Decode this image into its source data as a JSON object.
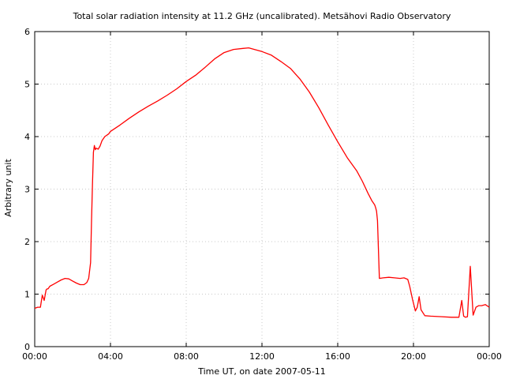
{
  "chart_data": {
    "type": "line",
    "title": "Total solar radiation intensity at 11.2 GHz (uncalibrated). Metsähovi Radio Observatory",
    "xlabel": "Time UT, on date 2007-05-11",
    "ylabel": "Arbitrary unit",
    "xlim": [
      0,
      24
    ],
    "ylim": [
      0,
      6
    ],
    "x_tick_values": [
      0,
      4,
      8,
      12,
      16,
      20,
      24
    ],
    "x_tick_labels": [
      "00:00",
      "04:00",
      "08:00",
      "12:00",
      "16:00",
      "20:00",
      "00:00"
    ],
    "y_tick_values": [
      0,
      1,
      2,
      3,
      4,
      5,
      6
    ],
    "y_tick_labels": [
      "0",
      "1",
      "2",
      "3",
      "4",
      "5",
      "6"
    ],
    "grid": true,
    "line_color": "#ff0000",
    "series": [
      {
        "x": [
          0.0,
          0.15,
          0.3,
          0.4,
          0.5,
          0.6,
          0.65,
          0.7,
          0.8,
          1.0,
          1.2,
          1.4,
          1.6,
          1.8,
          2.0,
          2.2,
          2.4,
          2.6,
          2.75,
          2.85,
          2.95,
          3.0,
          3.05,
          3.1,
          3.15,
          3.2,
          3.25,
          3.35,
          3.45,
          3.55,
          3.7,
          3.9,
          4.0,
          4.5,
          5.0,
          5.5,
          6.0,
          6.5,
          7.0,
          7.5,
          8.0,
          8.5,
          9.0,
          9.5,
          10.0,
          10.5,
          11.0,
          11.3,
          11.6,
          12.0,
          12.5,
          13.0,
          13.5,
          14.0,
          14.5,
          15.0,
          15.5,
          16.0,
          16.5,
          17.0,
          17.3,
          17.6,
          17.8,
          17.95,
          18.0,
          18.05,
          18.1,
          18.2,
          18.4,
          18.7,
          19.0,
          19.3,
          19.5,
          19.7,
          19.8,
          19.95,
          20.1,
          20.2,
          20.3,
          20.4,
          20.6,
          20.9,
          21.5,
          22.0,
          22.4,
          22.55,
          22.65,
          22.75,
          22.85,
          23.0,
          23.15,
          23.3,
          23.45,
          23.6,
          23.8,
          24.0
        ],
        "y": [
          0.73,
          0.75,
          0.75,
          0.98,
          0.88,
          1.08,
          1.1,
          1.1,
          1.15,
          1.19,
          1.23,
          1.27,
          1.3,
          1.29,
          1.25,
          1.21,
          1.18,
          1.18,
          1.22,
          1.3,
          1.6,
          2.4,
          3.1,
          3.7,
          3.83,
          3.75,
          3.78,
          3.76,
          3.82,
          3.92,
          4.0,
          4.05,
          4.1,
          4.22,
          4.35,
          4.47,
          4.58,
          4.68,
          4.79,
          4.91,
          5.05,
          5.17,
          5.32,
          5.48,
          5.6,
          5.66,
          5.68,
          5.69,
          5.66,
          5.62,
          5.55,
          5.43,
          5.3,
          5.1,
          4.85,
          4.55,
          4.22,
          3.9,
          3.6,
          3.35,
          3.15,
          2.92,
          2.78,
          2.7,
          2.65,
          2.58,
          2.4,
          1.3,
          1.31,
          1.32,
          1.31,
          1.3,
          1.31,
          1.28,
          1.15,
          0.9,
          0.68,
          0.75,
          0.95,
          0.7,
          0.59,
          0.58,
          0.57,
          0.56,
          0.56,
          0.88,
          0.58,
          0.56,
          0.57,
          1.53,
          0.6,
          0.75,
          0.78,
          0.78,
          0.8,
          0.75
        ]
      }
    ]
  }
}
